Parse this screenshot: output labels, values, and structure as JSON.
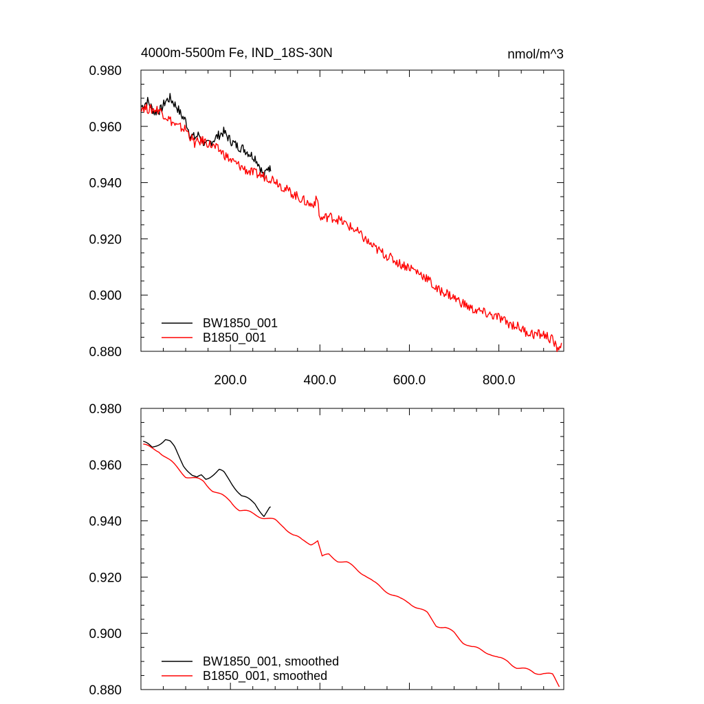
{
  "chart_data": [
    {
      "type": "line",
      "title": "4000m-5500m Fe, IND_18S-30N",
      "units": "nmol/m^3",
      "xlim": [
        0,
        945
      ],
      "ylim": [
        0.88,
        0.98
      ],
      "xticks": [
        200,
        400,
        600,
        800
      ],
      "xtick_labels": [
        "200.0",
        "400.0",
        "600.0",
        "800.0"
      ],
      "yticks": [
        0.88,
        0.9,
        0.92,
        0.94,
        0.96,
        0.98
      ],
      "ytick_labels": [
        "0.880",
        "0.900",
        "0.920",
        "0.940",
        "0.960",
        "0.980"
      ],
      "legend": "bottom-left",
      "series": [
        {
          "name": "BW1850_001",
          "color": "#000000",
          "points": [
            [
              1,
              0.967
            ],
            [
              15,
              0.969
            ],
            [
              30,
              0.965
            ],
            [
              45,
              0.966
            ],
            [
              55,
              0.969
            ],
            [
              65,
              0.97
            ],
            [
              80,
              0.967
            ],
            [
              90,
              0.964
            ],
            [
              100,
              0.962
            ],
            [
              110,
              0.957
            ],
            [
              120,
              0.956
            ],
            [
              130,
              0.957
            ],
            [
              145,
              0.953
            ],
            [
              160,
              0.955
            ],
            [
              175,
              0.957
            ],
            [
              185,
              0.958
            ],
            [
              200,
              0.955
            ],
            [
              215,
              0.953
            ],
            [
              230,
              0.952
            ],
            [
              245,
              0.95
            ],
            [
              255,
              0.949
            ],
            [
              265,
              0.946
            ],
            [
              275,
              0.942
            ],
            [
              285,
              0.946
            ],
            [
              290,
              0.944
            ]
          ]
        },
        {
          "name": "B1850_001",
          "color": "#ff0000",
          "points": [
            [
              1,
              0.967
            ],
            [
              20,
              0.966
            ],
            [
              40,
              0.966
            ],
            [
              60,
              0.963
            ],
            [
              80,
              0.96
            ],
            [
              100,
              0.959
            ],
            [
              120,
              0.954
            ],
            [
              140,
              0.955
            ],
            [
              160,
              0.953
            ],
            [
              180,
              0.951
            ],
            [
              200,
              0.948
            ],
            [
              220,
              0.946
            ],
            [
              240,
              0.944
            ],
            [
              260,
              0.943
            ],
            [
              280,
              0.942
            ],
            [
              300,
              0.941
            ],
            [
              320,
              0.938
            ],
            [
              340,
              0.936
            ],
            [
              360,
              0.934
            ],
            [
              380,
              0.932
            ],
            [
              395,
              0.934
            ],
            [
              400,
              0.927
            ],
            [
              420,
              0.928
            ],
            [
              440,
              0.927
            ],
            [
              460,
              0.925
            ],
            [
              480,
              0.923
            ],
            [
              500,
              0.92
            ],
            [
              520,
              0.917
            ],
            [
              540,
              0.915
            ],
            [
              560,
              0.913
            ],
            [
              580,
              0.911
            ],
            [
              600,
              0.91
            ],
            [
              620,
              0.908
            ],
            [
              640,
              0.906
            ],
            [
              660,
              0.902
            ],
            [
              680,
              0.901
            ],
            [
              700,
              0.899
            ],
            [
              720,
              0.897
            ],
            [
              740,
              0.895
            ],
            [
              760,
              0.894
            ],
            [
              780,
              0.893
            ],
            [
              800,
              0.892
            ],
            [
              820,
              0.89
            ],
            [
              840,
              0.889
            ],
            [
              860,
              0.887
            ],
            [
              880,
              0.886
            ],
            [
              900,
              0.886
            ],
            [
              920,
              0.884
            ],
            [
              930,
              0.881
            ],
            [
              940,
              0.883
            ]
          ]
        }
      ]
    },
    {
      "type": "line",
      "xlim": [
        0,
        945
      ],
      "ylim": [
        0.88,
        0.98
      ],
      "yticks": [
        0.88,
        0.9,
        0.92,
        0.94,
        0.96,
        0.98
      ],
      "ytick_labels": [
        "0.880",
        "0.900",
        "0.920",
        "0.940",
        "0.960",
        "0.980"
      ],
      "legend": "bottom-left",
      "series": [
        {
          "name": "BW1850_001, smoothed",
          "color": "#000000",
          "points": [
            [
              5,
              0.968
            ],
            [
              15,
              0.967
            ],
            [
              25,
              0.966
            ],
            [
              35,
              0.967
            ],
            [
              45,
              0.968
            ],
            [
              55,
              0.969
            ],
            [
              65,
              0.968
            ],
            [
              75,
              0.966
            ],
            [
              85,
              0.963
            ],
            [
              95,
              0.96
            ],
            [
              105,
              0.958
            ],
            [
              115,
              0.956
            ],
            [
              125,
              0.955
            ],
            [
              135,
              0.956
            ],
            [
              145,
              0.955
            ],
            [
              155,
              0.956
            ],
            [
              165,
              0.957
            ],
            [
              175,
              0.958
            ],
            [
              185,
              0.957
            ],
            [
              195,
              0.955
            ],
            [
              205,
              0.953
            ],
            [
              215,
              0.951
            ],
            [
              225,
              0.949
            ],
            [
              235,
              0.948
            ],
            [
              245,
              0.947
            ],
            [
              255,
              0.946
            ],
            [
              265,
              0.944
            ],
            [
              275,
              0.942
            ],
            [
              285,
              0.944
            ],
            [
              290,
              0.945
            ]
          ]
        },
        {
          "name": "B1850_001, smoothed",
          "color": "#ff0000",
          "points": [
            [
              5,
              0.967
            ],
            [
              20,
              0.966
            ],
            [
              40,
              0.965
            ],
            [
              60,
              0.962
            ],
            [
              80,
              0.959
            ],
            [
              100,
              0.956
            ],
            [
              120,
              0.955
            ],
            [
              140,
              0.954
            ],
            [
              160,
              0.951
            ],
            [
              180,
              0.949
            ],
            [
              200,
              0.947
            ],
            [
              220,
              0.944
            ],
            [
              240,
              0.943
            ],
            [
              260,
              0.942
            ],
            [
              280,
              0.941
            ],
            [
              300,
              0.94
            ],
            [
              320,
              0.938
            ],
            [
              340,
              0.935
            ],
            [
              360,
              0.933
            ],
            [
              380,
              0.932
            ],
            [
              395,
              0.933
            ],
            [
              405,
              0.927
            ],
            [
              420,
              0.928
            ],
            [
              440,
              0.926
            ],
            [
              460,
              0.925
            ],
            [
              480,
              0.923
            ],
            [
              500,
              0.921
            ],
            [
              520,
              0.918
            ],
            [
              540,
              0.916
            ],
            [
              560,
              0.914
            ],
            [
              580,
              0.912
            ],
            [
              600,
              0.911
            ],
            [
              620,
              0.909
            ],
            [
              640,
              0.907
            ],
            [
              660,
              0.903
            ],
            [
              680,
              0.902
            ],
            [
              700,
              0.9
            ],
            [
              720,
              0.897
            ],
            [
              740,
              0.895
            ],
            [
              760,
              0.894
            ],
            [
              780,
              0.893
            ],
            [
              800,
              0.891
            ],
            [
              820,
              0.89
            ],
            [
              840,
              0.888
            ],
            [
              860,
              0.887
            ],
            [
              880,
              0.886
            ],
            [
              900,
              0.886
            ],
            [
              920,
              0.885
            ],
            [
              935,
              0.881
            ]
          ]
        }
      ]
    }
  ]
}
